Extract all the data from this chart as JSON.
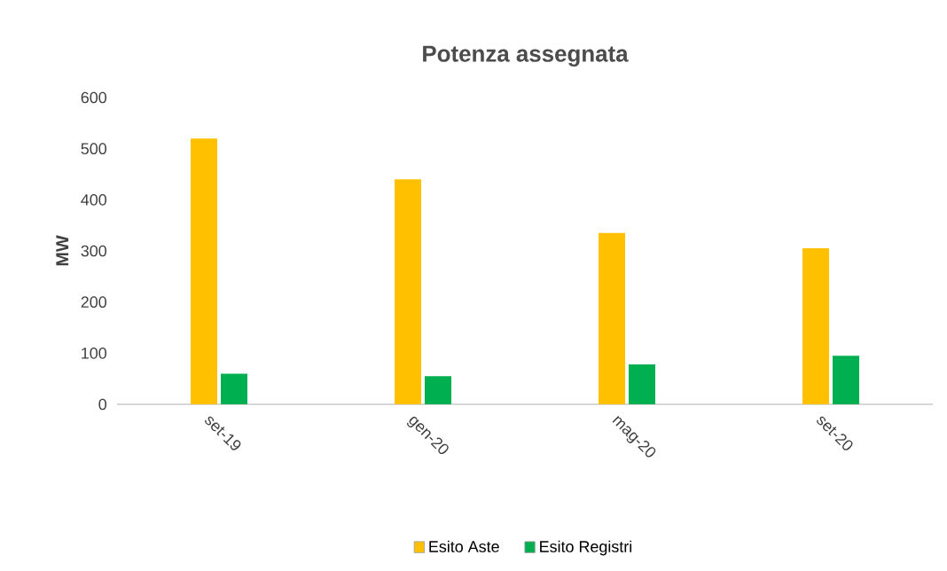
{
  "chart_data": {
    "type": "bar",
    "title": "Potenza assegnata",
    "ylabel": "MW",
    "categories": [
      "set-19",
      "gen-20",
      "mag-20",
      "set-20"
    ],
    "series": [
      {
        "name": "Esito Aste",
        "color": "#ffc000",
        "values": [
          520,
          440,
          335,
          305
        ]
      },
      {
        "name": "Esito Registri",
        "color": "#00b050",
        "values": [
          60,
          55,
          78,
          95
        ]
      }
    ],
    "ylim": [
      0,
      600
    ],
    "yticks": [
      0,
      100,
      200,
      300,
      400,
      500,
      600
    ],
    "grid": false,
    "legend": "bottom"
  }
}
